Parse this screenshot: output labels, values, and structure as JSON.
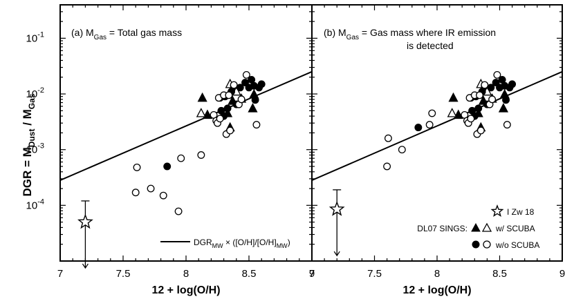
{
  "chart_data": {
    "type": "scatter",
    "ylabel": {
      "main": "DGR = M",
      "sub1": "Dust",
      "mid": " / M",
      "sub2": "Gas"
    },
    "xlabel": "12 + log(O/H)",
    "xlim": [
      7,
      9
    ],
    "ylim_log10": [
      -5,
      -0.4
    ],
    "xticks": [
      "7",
      "7.5",
      "8",
      "8.5",
      "9"
    ],
    "yticks": [
      {
        "base": "10",
        "exp": "-1",
        "log": -1
      },
      {
        "base": "10",
        "exp": "-2",
        "log": -2
      },
      {
        "base": "10",
        "exp": "-3",
        "log": -3
      },
      {
        "base": "10",
        "exp": "-4",
        "log": -4
      }
    ],
    "trend_line": {
      "x": [
        7,
        9
      ],
      "log_y": [
        -3.55,
        -1.6
      ]
    },
    "panels": [
      {
        "label": "(a) M",
        "label_sub": "Gas",
        "label_rest": " = Total gas mass",
        "label_line2": "",
        "izw18": {
          "x": 7.2,
          "y": 5e-05,
          "upper_err": 0.00012,
          "lower_arrow_to": 7.5e-06
        },
        "series": [
          {
            "name": "SCUBA filled triangles",
            "marker": "triangle",
            "filled": true,
            "x": [
              8.13,
              8.17,
              8.35,
              8.33,
              8.37,
              8.44,
              8.53,
              8.54
            ],
            "y": [
              0.0085,
              0.0042,
              0.0025,
              0.0045,
              0.0075,
              0.0082,
              0.0055,
              0.0098
            ]
          },
          {
            "name": "SCUBA open triangles",
            "marker": "triangle",
            "filled": false,
            "x": [
              8.12,
              8.35,
              8.4
            ],
            "y": [
              0.0045,
              0.015,
              0.011
            ]
          },
          {
            "name": "no SCUBA filled circles",
            "marker": "circle",
            "filled": true,
            "x": [
              7.85,
              8.27,
              8.31,
              8.33,
              8.36,
              8.38,
              8.4,
              8.43,
              8.47,
              8.5,
              8.52,
              8.54,
              8.58,
              8.6,
              8.3,
              8.28,
              8.55
            ],
            "y": [
              0.0005,
              0.0085,
              0.009,
              0.0055,
              0.011,
              0.014,
              0.0065,
              0.013,
              0.016,
              0.013,
              0.018,
              0.014,
              0.013,
              0.015,
              0.004,
              0.005,
              0.0078
            ]
          },
          {
            "name": "no SCUBA open circles",
            "marker": "circle",
            "filled": false,
            "x": [
              7.6,
              7.61,
              7.72,
              7.82,
              7.94,
              7.96,
              8.12,
              8.22,
              8.24,
              8.26,
              8.3,
              8.32,
              8.35,
              8.38,
              8.42,
              8.44,
              8.48,
              8.56,
              8.25,
              8.34,
              8.27
            ],
            "y": [
              0.00017,
              0.00048,
              0.0002,
              0.00015,
              7.8e-05,
              0.0007,
              0.0008,
              0.0042,
              0.0033,
              0.0085,
              0.0095,
              0.0019,
              0.0022,
              0.0145,
              0.0065,
              0.008,
              0.022,
              0.0028,
              0.003,
              0.0095,
              0.0036
            ]
          }
        ]
      },
      {
        "label": "(b) M",
        "label_sub": "Gas",
        "label_rest": " = Gas mass where IR emission",
        "label_line2": "is detected",
        "izw18": {
          "x": 7.2,
          "y": 8.5e-05,
          "upper_err": 0.00019,
          "lower_arrow_to": 1.25e-05
        },
        "series": [
          {
            "name": "SCUBA filled triangles",
            "marker": "triangle",
            "filled": true,
            "x": [
              8.13,
              8.17,
              8.35,
              8.33,
              8.37,
              8.44,
              8.53,
              8.54
            ],
            "y": [
              0.0085,
              0.0042,
              0.0025,
              0.0045,
              0.0075,
              0.0082,
              0.0055,
              0.0098
            ]
          },
          {
            "name": "SCUBA open triangles",
            "marker": "triangle",
            "filled": false,
            "x": [
              8.12,
              8.35,
              8.4
            ],
            "y": [
              0.0045,
              0.015,
              0.011
            ]
          },
          {
            "name": "no SCUBA filled circles",
            "marker": "circle",
            "filled": true,
            "x": [
              7.85,
              8.27,
              8.31,
              8.33,
              8.36,
              8.38,
              8.4,
              8.43,
              8.47,
              8.5,
              8.52,
              8.54,
              8.58,
              8.6,
              8.3,
              8.28,
              8.55
            ],
            "y": [
              0.0025,
              0.0085,
              0.009,
              0.0055,
              0.011,
              0.014,
              0.0065,
              0.013,
              0.016,
              0.013,
              0.018,
              0.014,
              0.013,
              0.015,
              0.004,
              0.005,
              0.0078
            ]
          },
          {
            "name": "no SCUBA open circles",
            "marker": "circle",
            "filled": false,
            "x": [
              7.6,
              7.61,
              7.72,
              7.94,
              7.96,
              8.22,
              8.24,
              8.26,
              8.3,
              8.32,
              8.35,
              8.38,
              8.42,
              8.44,
              8.48,
              8.56,
              8.25,
              8.34,
              8.27
            ],
            "y": [
              0.0005,
              0.0016,
              0.001,
              0.0028,
              0.0045,
              0.0042,
              0.0033,
              0.0085,
              0.0095,
              0.0019,
              0.0022,
              0.0145,
              0.0065,
              0.008,
              0.022,
              0.0028,
              0.003,
              0.0095,
              0.0036
            ]
          }
        ]
      }
    ],
    "legend_a": {
      "pre": "DGR",
      "sub": "MW",
      "mid": " × ([O/H]/[O/H]",
      "sub2": "MW",
      "post": ")"
    },
    "legend_b": {
      "izw18_label": "I Zw 18",
      "sings_label": "DL07 SINGS:",
      "scuba_label": "w/ SCUBA",
      "noscuba_label": "w/o SCUBA"
    }
  }
}
